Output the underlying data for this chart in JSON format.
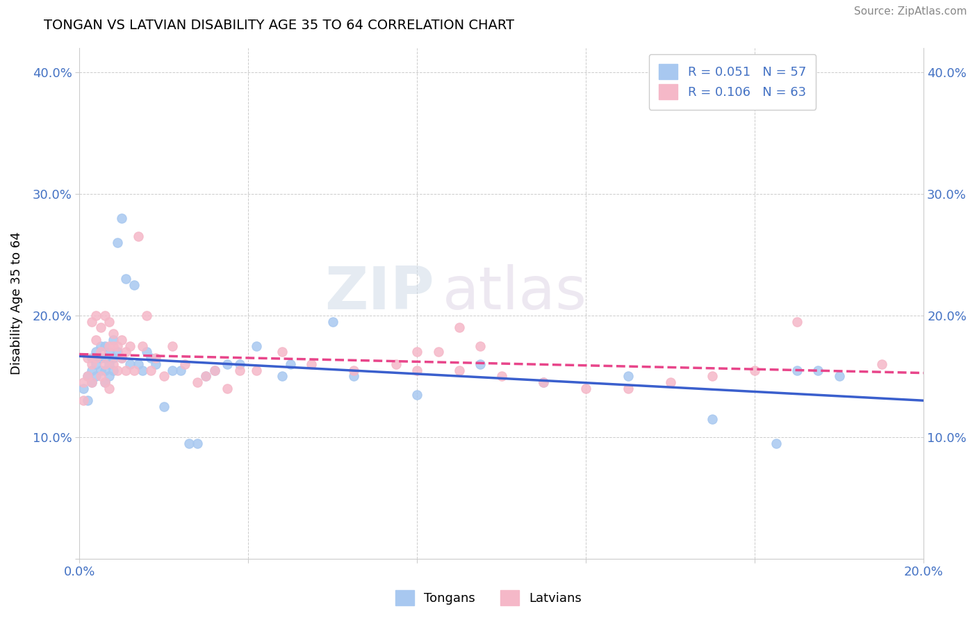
{
  "title": "TONGAN VS LATVIAN DISABILITY AGE 35 TO 64 CORRELATION CHART",
  "source": "Source: ZipAtlas.com",
  "ylabel": "Disability Age 35 to 64",
  "xlim": [
    0.0,
    0.2
  ],
  "ylim": [
    0.0,
    0.42
  ],
  "xticks": [
    0.0,
    0.04,
    0.08,
    0.12,
    0.16,
    0.2
  ],
  "yticks": [
    0.0,
    0.1,
    0.2,
    0.3,
    0.4
  ],
  "xticklabels": [
    "0.0%",
    "",
    "",
    "",
    "",
    "20.0%"
  ],
  "yticklabels": [
    "",
    "10.0%",
    "20.0%",
    "30.0%",
    "40.0%"
  ],
  "tongan_color": "#a8c8f0",
  "latvian_color": "#f5b8c8",
  "tongan_line_color": "#3a5fcd",
  "latvian_line_color": "#e8458a",
  "legend_R_tongan": "R = 0.051",
  "legend_N_tongan": "N = 57",
  "legend_R_latvian": "R = 0.106",
  "legend_N_latvian": "N = 63",
  "tongan_x": [
    0.001,
    0.002,
    0.002,
    0.003,
    0.003,
    0.003,
    0.004,
    0.004,
    0.004,
    0.005,
    0.005,
    0.005,
    0.006,
    0.006,
    0.006,
    0.006,
    0.007,
    0.007,
    0.007,
    0.008,
    0.008,
    0.008,
    0.009,
    0.009,
    0.01,
    0.01,
    0.011,
    0.012,
    0.013,
    0.014,
    0.015,
    0.016,
    0.017,
    0.018,
    0.02,
    0.022,
    0.024,
    0.026,
    0.028,
    0.03,
    0.032,
    0.035,
    0.038,
    0.042,
    0.048,
    0.05,
    0.06,
    0.065,
    0.08,
    0.095,
    0.11,
    0.13,
    0.15,
    0.165,
    0.17,
    0.175,
    0.18
  ],
  "tongan_y": [
    0.14,
    0.13,
    0.15,
    0.145,
    0.155,
    0.165,
    0.15,
    0.16,
    0.17,
    0.155,
    0.165,
    0.175,
    0.145,
    0.155,
    0.165,
    0.175,
    0.15,
    0.16,
    0.17,
    0.155,
    0.165,
    0.18,
    0.17,
    0.26,
    0.165,
    0.28,
    0.23,
    0.16,
    0.225,
    0.16,
    0.155,
    0.17,
    0.165,
    0.16,
    0.125,
    0.155,
    0.155,
    0.095,
    0.095,
    0.15,
    0.155,
    0.16,
    0.16,
    0.175,
    0.15,
    0.16,
    0.195,
    0.15,
    0.135,
    0.16,
    0.145,
    0.15,
    0.115,
    0.095,
    0.155,
    0.155,
    0.15
  ],
  "latvian_x": [
    0.001,
    0.001,
    0.002,
    0.002,
    0.003,
    0.003,
    0.003,
    0.004,
    0.004,
    0.004,
    0.005,
    0.005,
    0.005,
    0.006,
    0.006,
    0.006,
    0.007,
    0.007,
    0.007,
    0.008,
    0.008,
    0.008,
    0.009,
    0.009,
    0.01,
    0.01,
    0.011,
    0.011,
    0.012,
    0.013,
    0.014,
    0.015,
    0.016,
    0.017,
    0.018,
    0.02,
    0.022,
    0.025,
    0.028,
    0.03,
    0.032,
    0.035,
    0.038,
    0.042,
    0.048,
    0.055,
    0.065,
    0.08,
    0.09,
    0.1,
    0.11,
    0.12,
    0.13,
    0.14,
    0.15,
    0.16,
    0.075,
    0.08,
    0.085,
    0.09,
    0.095,
    0.17,
    0.19
  ],
  "latvian_y": [
    0.13,
    0.145,
    0.15,
    0.165,
    0.145,
    0.16,
    0.195,
    0.165,
    0.18,
    0.2,
    0.15,
    0.17,
    0.19,
    0.145,
    0.16,
    0.2,
    0.14,
    0.175,
    0.195,
    0.16,
    0.175,
    0.185,
    0.155,
    0.175,
    0.165,
    0.18,
    0.155,
    0.17,
    0.175,
    0.155,
    0.265,
    0.175,
    0.2,
    0.155,
    0.165,
    0.15,
    0.175,
    0.16,
    0.145,
    0.15,
    0.155,
    0.14,
    0.155,
    0.155,
    0.17,
    0.16,
    0.155,
    0.155,
    0.155,
    0.15,
    0.145,
    0.14,
    0.14,
    0.145,
    0.15,
    0.155,
    0.16,
    0.17,
    0.17,
    0.19,
    0.175,
    0.195,
    0.16
  ],
  "watermark": "ZIPatlas"
}
